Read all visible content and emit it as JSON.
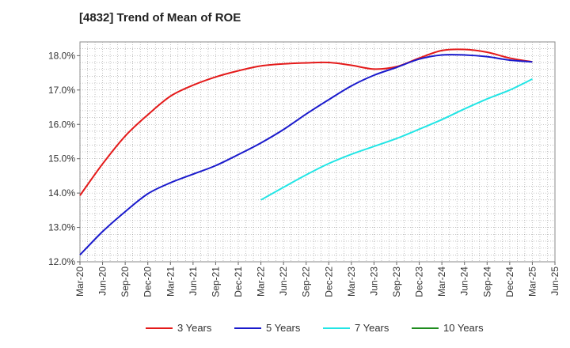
{
  "chart_data": {
    "type": "line",
    "title": "[4832]  Trend of Mean of ROE",
    "xlabel": "",
    "ylabel": "",
    "ylim": [
      12.0,
      18.4
    ],
    "yticks": [
      12.0,
      13.0,
      14.0,
      15.0,
      16.0,
      17.0,
      18.0
    ],
    "ytick_labels": [
      "12.0%",
      "13.0%",
      "14.0%",
      "15.0%",
      "16.0%",
      "17.0%",
      "18.0%"
    ],
    "x_labels": [
      "Mar-20",
      "Jun-20",
      "Sep-20",
      "Dec-20",
      "Mar-21",
      "Jun-21",
      "Sep-21",
      "Dec-21",
      "Mar-22",
      "Jun-22",
      "Sep-22",
      "Dec-22",
      "Mar-23",
      "Jun-23",
      "Sep-23",
      "Dec-23",
      "Mar-24",
      "Jun-24",
      "Sep-24",
      "Dec-24",
      "Mar-25",
      "Jun-25"
    ],
    "grid": true,
    "legend_position": "bottom",
    "series": [
      {
        "name": "3 Years",
        "color": "#e41a1a",
        "x": [
          "Mar-20",
          "Jun-20",
          "Sep-20",
          "Dec-20",
          "Mar-21",
          "Jun-21",
          "Sep-21",
          "Dec-21",
          "Mar-22",
          "Jun-22",
          "Sep-22",
          "Dec-22",
          "Mar-23",
          "Jun-23",
          "Sep-23",
          "Dec-23",
          "Mar-24",
          "Jun-24",
          "Sep-24",
          "Dec-24",
          "Mar-25"
        ],
        "values": [
          13.93,
          14.85,
          15.66,
          16.28,
          16.82,
          17.14,
          17.38,
          17.56,
          17.7,
          17.76,
          17.79,
          17.8,
          17.72,
          17.61,
          17.68,
          17.93,
          18.15,
          18.18,
          18.1,
          17.93,
          17.82
        ]
      },
      {
        "name": "5 Years",
        "color": "#1a1acc",
        "x": [
          "Mar-20",
          "Jun-20",
          "Sep-20",
          "Dec-20",
          "Mar-21",
          "Jun-21",
          "Sep-21",
          "Dec-21",
          "Mar-22",
          "Jun-22",
          "Sep-22",
          "Dec-22",
          "Mar-23",
          "Jun-23",
          "Sep-23",
          "Dec-23",
          "Mar-24",
          "Jun-24",
          "Sep-24",
          "Dec-24",
          "Mar-25"
        ],
        "values": [
          12.2,
          12.88,
          13.46,
          13.98,
          14.3,
          14.55,
          14.8,
          15.12,
          15.46,
          15.85,
          16.3,
          16.72,
          17.12,
          17.43,
          17.66,
          17.9,
          18.02,
          18.02,
          17.97,
          17.87,
          17.82
        ]
      },
      {
        "name": "7 Years",
        "color": "#22e5e5",
        "x": [
          "Mar-22",
          "Jun-22",
          "Sep-22",
          "Dec-22",
          "Mar-23",
          "Jun-23",
          "Sep-23",
          "Dec-23",
          "Mar-24",
          "Jun-24",
          "Sep-24",
          "Dec-24",
          "Mar-25"
        ],
        "values": [
          13.8,
          14.17,
          14.53,
          14.86,
          15.13,
          15.36,
          15.59,
          15.86,
          16.14,
          16.45,
          16.74,
          17.0,
          17.32
        ]
      },
      {
        "name": "10 Years",
        "color": "#1e8c1e",
        "x": [],
        "values": []
      }
    ]
  }
}
